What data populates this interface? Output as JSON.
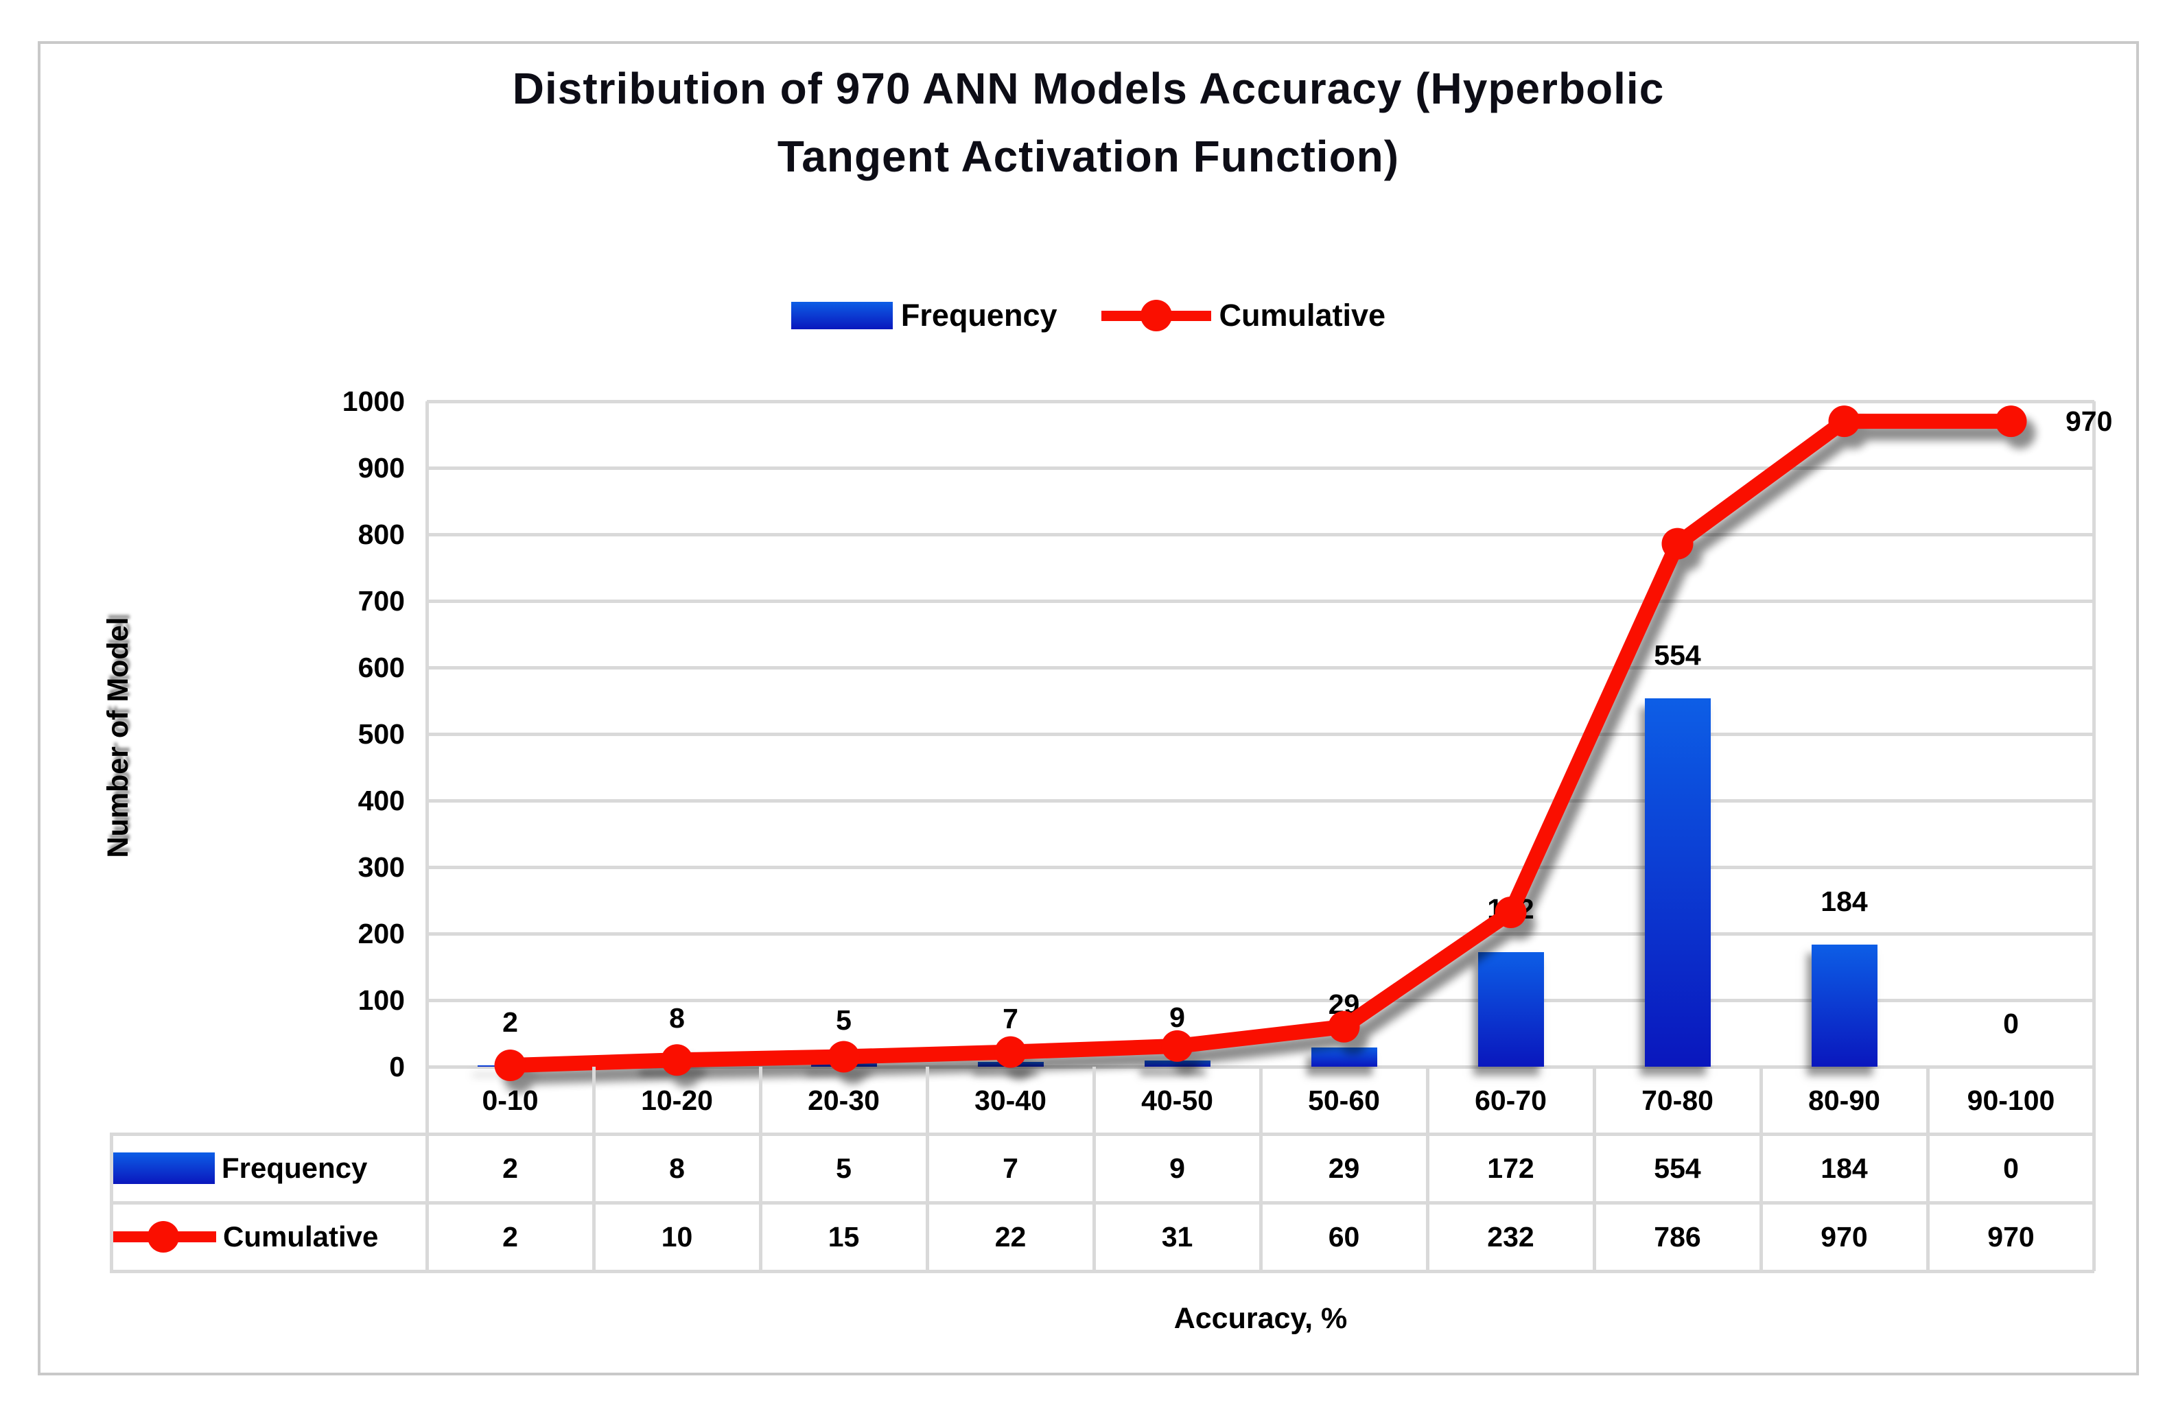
{
  "title_lines": [
    "Distribution of 970 ANN Models Accuracy (Hyperbolic",
    "Tangent Activation Function)"
  ],
  "legend": [
    {
      "label": "Frequency",
      "swatch": "bar"
    },
    {
      "label": "Cumulative",
      "swatch": "line"
    }
  ],
  "chart_data": {
    "type": "combo",
    "categories": [
      "0-10",
      "10-20",
      "20-30",
      "30-40",
      "40-50",
      "50-60",
      "60-70",
      "70-80",
      "80-90",
      "90-100"
    ],
    "series": [
      {
        "name": "Frequency",
        "type": "bar",
        "values": [
          2,
          8,
          5,
          7,
          9,
          29,
          172,
          554,
          184,
          0
        ]
      },
      {
        "name": "Cumulative",
        "type": "line",
        "values": [
          2,
          10,
          15,
          22,
          31,
          60,
          232,
          786,
          970,
          970
        ]
      }
    ],
    "bar_data_labels": [
      "2",
      "8",
      "5",
      "7",
      "9",
      "29",
      "172",
      "554",
      "184",
      "0"
    ],
    "line_end_label": "970",
    "xlabel": "Accuracy, %",
    "ylabel": "Number of Model",
    "ylim": [
      0,
      1000
    ],
    "ytick_step": 100,
    "yticks": [
      "1000",
      "900",
      "800",
      "700",
      "600",
      "500",
      "400",
      "300",
      "200",
      "100",
      "0"
    ],
    "grid": true,
    "legend_position": "top"
  },
  "data_table": {
    "rows": [
      {
        "label": "Frequency",
        "key": "bar",
        "values": [
          "2",
          "8",
          "5",
          "7",
          "9",
          "29",
          "172",
          "554",
          "184",
          "0"
        ]
      },
      {
        "label": "Cumulative",
        "key": "line",
        "values": [
          "2",
          "10",
          "15",
          "22",
          "31",
          "60",
          "232",
          "786",
          "970",
          "970"
        ]
      }
    ]
  },
  "colors": {
    "bar_gradient_top": "#0d5ee6",
    "bar_gradient_bottom": "#0a17bd",
    "line": "#fa0f00",
    "grid": "#d9d9d9",
    "text": "#000000",
    "frame_border": "#c9c9c9",
    "title_text": "#0d0d16"
  }
}
